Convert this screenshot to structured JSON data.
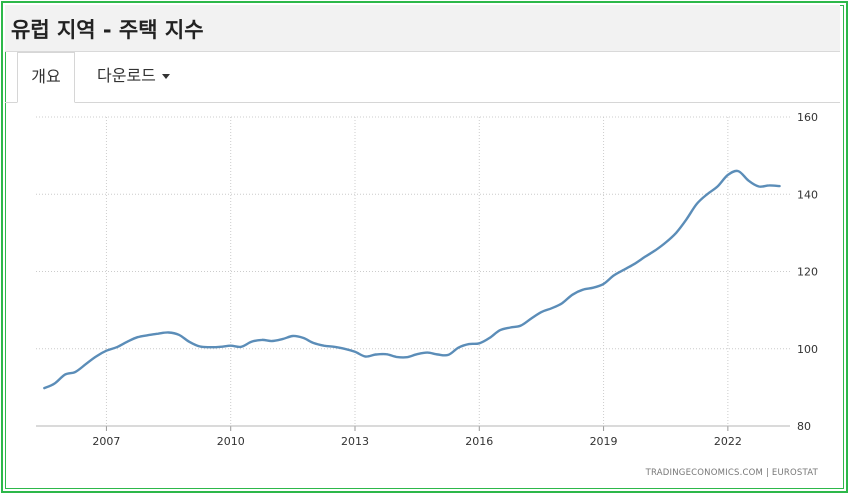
{
  "header": {
    "title": "유럽 지역 - 주택 지수"
  },
  "tabs": [
    {
      "label": "개요"
    },
    {
      "label": "다운로드"
    }
  ],
  "source_text": "TRADINGECONOMICS.COM  |  EUROSTAT",
  "colors": {
    "line": "#5b8db8",
    "frame": "#2db84a",
    "grid": "#cccccc"
  },
  "chart_data": {
    "type": "line",
    "title": "",
    "xlabel": "",
    "ylabel": "",
    "ylim": [
      80,
      160
    ],
    "xlim": [
      2005.3,
      2023.5
    ],
    "y_ticks": [
      80,
      100,
      120,
      140,
      160
    ],
    "x_ticks": [
      2007,
      2010,
      2013,
      2016,
      2019,
      2022
    ],
    "grid": true,
    "y_axis_side": "right",
    "series": [
      {
        "x": [
          2005.5,
          2005.75,
          2006.0,
          2006.25,
          2006.5,
          2006.75,
          2007.0,
          2007.25,
          2007.5,
          2007.75,
          2008.0,
          2008.25,
          2008.5,
          2008.75,
          2009.0,
          2009.25,
          2009.5,
          2009.75,
          2010.0,
          2010.25,
          2010.5,
          2010.75,
          2011.0,
          2011.25,
          2011.5,
          2011.75,
          2012.0,
          2012.25,
          2012.5,
          2012.75,
          2013.0,
          2013.25,
          2013.5,
          2013.75,
          2014.0,
          2014.25,
          2014.5,
          2014.75,
          2015.0,
          2015.25,
          2015.5,
          2015.75,
          2016.0,
          2016.25,
          2016.5,
          2016.75,
          2017.0,
          2017.25,
          2017.5,
          2017.75,
          2018.0,
          2018.25,
          2018.5,
          2018.75,
          2019.0,
          2019.25,
          2019.5,
          2019.75,
          2020.0,
          2020.25,
          2020.5,
          2020.75,
          2021.0,
          2021.25,
          2021.5,
          2021.75,
          2022.0,
          2022.25,
          2022.5,
          2022.75,
          2023.0,
          2023.25
        ],
        "values": [
          89.8,
          91.0,
          93.3,
          94.0,
          96.0,
          98.0,
          99.5,
          100.4,
          101.8,
          103.0,
          103.5,
          103.9,
          104.2,
          103.6,
          101.8,
          100.6,
          100.4,
          100.5,
          100.8,
          100.5,
          101.8,
          102.3,
          102.0,
          102.5,
          103.3,
          102.8,
          101.5,
          100.8,
          100.5,
          100.0,
          99.2,
          98.0,
          98.5,
          98.6,
          97.9,
          97.8,
          98.6,
          99.0,
          98.5,
          98.4,
          100.3,
          101.2,
          101.4,
          102.8,
          104.8,
          105.5,
          106.0,
          107.8,
          109.5,
          110.5,
          111.8,
          114.0,
          115.3,
          115.8,
          116.8,
          119.0,
          120.5,
          122.0,
          123.8,
          125.5,
          127.5,
          130.0,
          133.5,
          137.5,
          140.0,
          142.0,
          145.0,
          146.0,
          143.5,
          142.0,
          142.3,
          142.1
        ]
      }
    ]
  }
}
